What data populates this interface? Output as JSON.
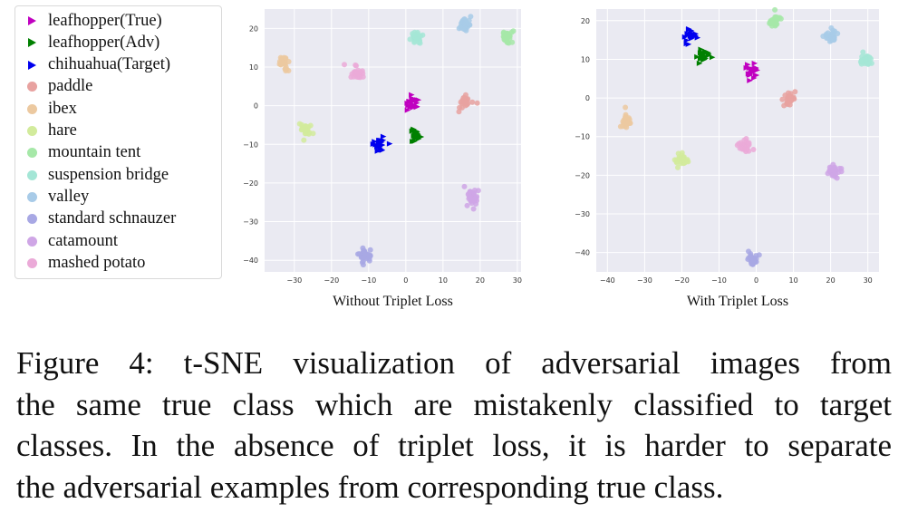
{
  "legend": [
    {
      "label": "leafhopper(True)",
      "marker": "triangle",
      "color": "#c000c0"
    },
    {
      "label": "leafhopper(Adv)",
      "marker": "triangle",
      "color": "#008000"
    },
    {
      "label": "chihuahua(Target)",
      "marker": "triangle",
      "color": "#0000ee"
    },
    {
      "label": "paddle",
      "marker": "dot",
      "color": "#e8a2a0"
    },
    {
      "label": "ibex",
      "marker": "dot",
      "color": "#ecc9a0"
    },
    {
      "label": "hare",
      "marker": "dot",
      "color": "#d2eb9c"
    },
    {
      "label": "mountain tent",
      "marker": "dot",
      "color": "#a6e8a8"
    },
    {
      "label": "suspension bridge",
      "marker": "dot",
      "color": "#a4e6d6"
    },
    {
      "label": "valley",
      "marker": "dot",
      "color": "#a8cbe8"
    },
    {
      "label": "standard schnauzer",
      "marker": "dot",
      "color": "#a8a8e4"
    },
    {
      "label": "catamount",
      "marker": "dot",
      "color": "#cfa6e6"
    },
    {
      "label": "mashed potato",
      "marker": "dot",
      "color": "#ebaad8"
    }
  ],
  "chart_data": [
    {
      "type": "scatter",
      "title": "",
      "xlabel": "Without Triplet Loss",
      "ylabel": "",
      "xlim": [
        -38,
        31
      ],
      "ylim": [
        -43,
        25
      ],
      "xticks": [
        -30,
        -20,
        -10,
        0,
        10,
        20,
        30
      ],
      "yticks": [
        20,
        10,
        0,
        -10,
        -20,
        -30,
        -40
      ],
      "grid": true,
      "clusters": [
        {
          "class": "leafhopper(True)",
          "x": 2,
          "y": 0.5
        },
        {
          "class": "leafhopper(Adv)",
          "x": 2.5,
          "y": -7.5
        },
        {
          "class": "chihuahua(Target)",
          "x": -7,
          "y": -10
        },
        {
          "class": "paddle",
          "x": 16,
          "y": 1
        },
        {
          "class": "ibex",
          "x": -33,
          "y": 11
        },
        {
          "class": "hare",
          "x": -27,
          "y": -6
        },
        {
          "class": "mountain tent",
          "x": 27,
          "y": 18
        },
        {
          "class": "suspension bridge",
          "x": 3,
          "y": 17.5
        },
        {
          "class": "valley",
          "x": 16,
          "y": 21
        },
        {
          "class": "standard schnauzer",
          "x": -11,
          "y": -39
        },
        {
          "class": "catamount",
          "x": 18,
          "y": -24
        },
        {
          "class": "mashed potato",
          "x": -13,
          "y": 8.5
        }
      ]
    },
    {
      "type": "scatter",
      "title": "",
      "xlabel": "With Triplet Loss",
      "ylabel": "",
      "xlim": [
        -43,
        33
      ],
      "ylim": [
        -45,
        23
      ],
      "xticks": [
        -40,
        -30,
        -20,
        -10,
        0,
        10,
        20,
        30
      ],
      "yticks": [
        20,
        10,
        0,
        -10,
        -20,
        -30,
        -40
      ],
      "grid": true,
      "clusters": [
        {
          "class": "leafhopper(True)",
          "x": -1,
          "y": 7
        },
        {
          "class": "leafhopper(Adv)",
          "x": -14,
          "y": 10.5
        },
        {
          "class": "chihuahua(Target)",
          "x": -18,
          "y": 16
        },
        {
          "class": "paddle",
          "x": 9,
          "y": 0
        },
        {
          "class": "ibex",
          "x": -35,
          "y": -6
        },
        {
          "class": "hare",
          "x": -20,
          "y": -16
        },
        {
          "class": "mountain tent",
          "x": 5,
          "y": 20
        },
        {
          "class": "suspension bridge",
          "x": 29.5,
          "y": 10
        },
        {
          "class": "valley",
          "x": 20,
          "y": 16
        },
        {
          "class": "standard schnauzer",
          "x": -1,
          "y": -42
        },
        {
          "class": "catamount",
          "x": 21,
          "y": -19
        },
        {
          "class": "mashed potato",
          "x": -3,
          "y": -12.5
        }
      ]
    }
  ],
  "caption": {
    "lines": [
      "Figure 4:  t-SNE visualization of adversarial images from",
      "the same true class which are mistakenly classified to target",
      "classes. In the absence of triplet loss, it is harder to separate",
      "the adversarial examples from corresponding true class."
    ]
  }
}
